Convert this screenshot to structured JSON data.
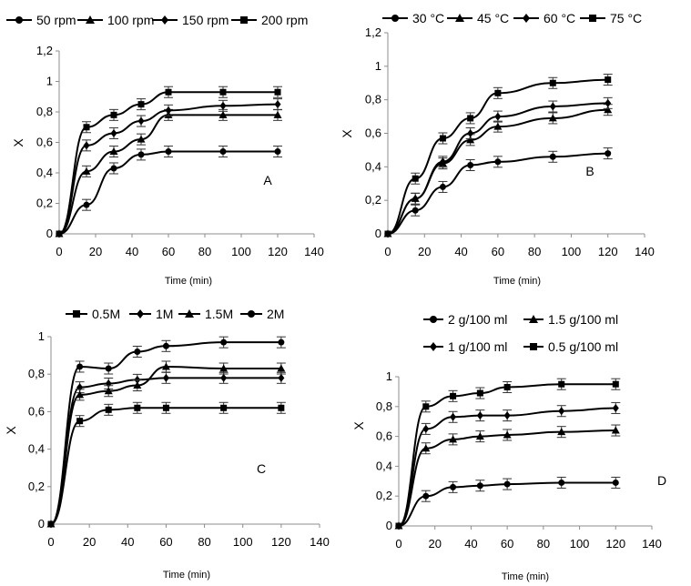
{
  "chart_data": [
    {
      "type": "line",
      "panel_label": "A",
      "xlabel": "Time (min)",
      "ylabel": "X",
      "xlim": [
        0,
        140
      ],
      "ylim": [
        0,
        1.2
      ],
      "xticks": [
        "0",
        "20",
        "40",
        "60",
        "80",
        "100",
        "120",
        "140"
      ],
      "yticks": [
        "0",
        "0,2",
        "0,4",
        "0,6",
        "0,8",
        "1",
        "1,2"
      ],
      "legend_position": "top",
      "x": [
        0,
        15,
        30,
        45,
        60,
        90,
        120
      ],
      "series": [
        {
          "name": "50 rpm",
          "marker": "circle",
          "values": [
            0,
            0.19,
            0.43,
            0.52,
            0.54,
            0.54,
            0.54
          ]
        },
        {
          "name": "100 rpm",
          "marker": "triangle",
          "values": [
            0,
            0.41,
            0.54,
            0.62,
            0.78,
            0.78,
            0.78
          ]
        },
        {
          "name": "150 rpm",
          "marker": "diamond",
          "values": [
            0,
            0.58,
            0.66,
            0.74,
            0.81,
            0.84,
            0.85
          ]
        },
        {
          "name": "200 rpm",
          "marker": "square",
          "values": [
            0,
            0.7,
            0.78,
            0.85,
            0.93,
            0.93,
            0.93
          ]
        }
      ]
    },
    {
      "type": "line",
      "panel_label": "B",
      "xlabel": "Time (min)",
      "ylabel": "X",
      "xlim": [
        0,
        140
      ],
      "ylim": [
        0,
        1.2
      ],
      "xticks": [
        "0",
        "20",
        "40",
        "60",
        "80",
        "100",
        "120",
        "140"
      ],
      "yticks": [
        "0",
        "0,2",
        "0,4",
        "0,6",
        "0,8",
        "1",
        "1,2"
      ],
      "legend_position": "top",
      "x": [
        0,
        15,
        30,
        45,
        60,
        90,
        120
      ],
      "series": [
        {
          "name": "30 °C",
          "marker": "circle",
          "values": [
            0,
            0.14,
            0.28,
            0.41,
            0.43,
            0.46,
            0.48
          ]
        },
        {
          "name": "45 °C",
          "marker": "triangle",
          "values": [
            0,
            0.21,
            0.42,
            0.56,
            0.64,
            0.69,
            0.74
          ]
        },
        {
          "name": "60 °C",
          "marker": "diamond",
          "values": [
            0,
            0.21,
            0.43,
            0.6,
            0.7,
            0.76,
            0.78
          ]
        },
        {
          "name": "75 °C",
          "marker": "square",
          "values": [
            0,
            0.33,
            0.57,
            0.69,
            0.84,
            0.9,
            0.92
          ]
        }
      ]
    },
    {
      "type": "line",
      "panel_label": "C",
      "xlabel": "Time (min)",
      "ylabel": "X",
      "xlim": [
        0,
        140
      ],
      "ylim": [
        0,
        1
      ],
      "xticks": [
        "0",
        "20",
        "40",
        "60",
        "80",
        "100",
        "120",
        "140"
      ],
      "yticks": [
        "0",
        "0,2",
        "0,4",
        "0,6",
        "0,8",
        "1"
      ],
      "legend_position": "top",
      "x": [
        0,
        15,
        30,
        45,
        60,
        90,
        120
      ],
      "series": [
        {
          "name": "0.5M",
          "marker": "square",
          "values": [
            0,
            0.55,
            0.61,
            0.62,
            0.62,
            0.62,
            0.62
          ]
        },
        {
          "name": "1M",
          "marker": "diamond",
          "values": [
            0,
            0.73,
            0.75,
            0.77,
            0.78,
            0.78,
            0.78
          ]
        },
        {
          "name": "1.5M",
          "marker": "triangle",
          "values": [
            0,
            0.69,
            0.71,
            0.74,
            0.84,
            0.83,
            0.83
          ]
        },
        {
          "name": "2M",
          "marker": "circle",
          "values": [
            0,
            0.84,
            0.83,
            0.92,
            0.95,
            0.97,
            0.97
          ]
        }
      ]
    },
    {
      "type": "line",
      "panel_label": "D",
      "xlabel": "Time (min)",
      "ylabel": "X",
      "xlim": [
        0,
        140
      ],
      "ylim": [
        0,
        1
      ],
      "xticks": [
        "0",
        "20",
        "40",
        "60",
        "80",
        "100",
        "120",
        "140"
      ],
      "yticks": [
        "0",
        "0,2",
        "0,4",
        "0,6",
        "0,8",
        "1"
      ],
      "legend_position": "top",
      "x": [
        0,
        15,
        30,
        45,
        60,
        90,
        120
      ],
      "series": [
        {
          "name": "2 g/100 ml",
          "marker": "circle",
          "values": [
            0,
            0.2,
            0.26,
            0.27,
            0.28,
            0.29,
            0.29
          ]
        },
        {
          "name": "1.5 g/100 ml",
          "marker": "triangle",
          "values": [
            0,
            0.52,
            0.58,
            0.6,
            0.61,
            0.63,
            0.64
          ]
        },
        {
          "name": "1 g/100 ml",
          "marker": "diamond",
          "values": [
            0,
            0.65,
            0.73,
            0.74,
            0.74,
            0.77,
            0.79
          ]
        },
        {
          "name": "0.5 g/100 ml",
          "marker": "square",
          "values": [
            0,
            0.8,
            0.87,
            0.89,
            0.93,
            0.95,
            0.95
          ]
        }
      ]
    }
  ]
}
